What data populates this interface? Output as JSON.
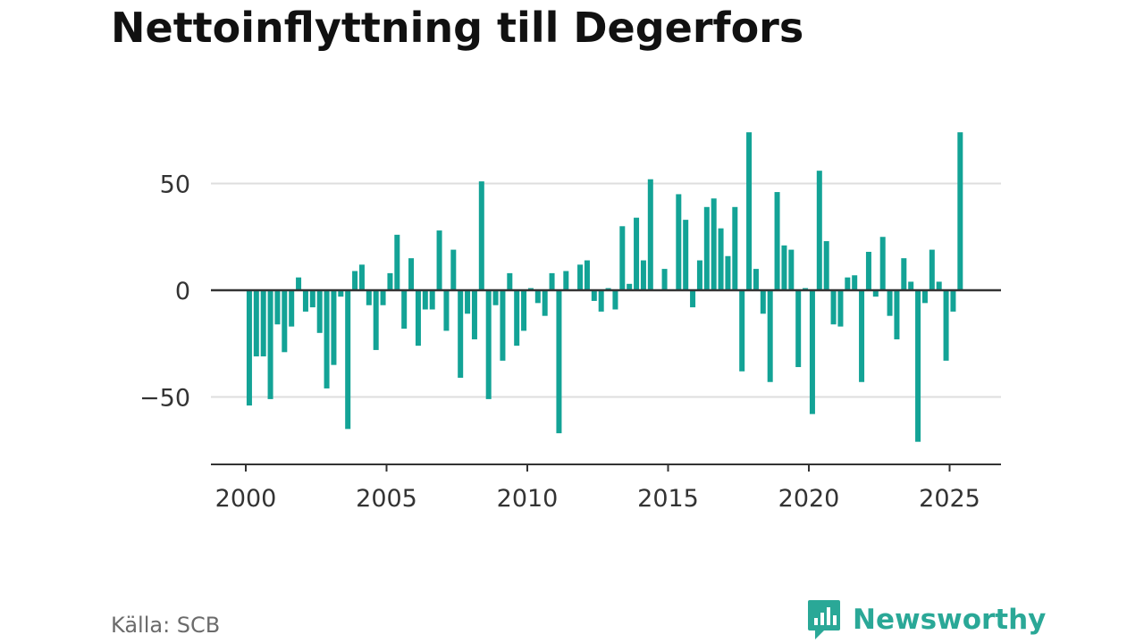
{
  "title": "Nettoinflyttning till Degerfors",
  "source": "Källa: SCB",
  "brand": "Newsworthy",
  "colors": {
    "bar": "#13a396",
    "grid": "#dedede",
    "zero_line": "#333333",
    "brand": "#2aa897"
  },
  "chart_data": {
    "type": "bar",
    "title": "Nettoinflyttning till Degerfors",
    "xlabel": "",
    "ylabel": "",
    "x_ticks": [
      "2000",
      "2005",
      "2010",
      "2015",
      "2020",
      "2025"
    ],
    "y_ticks": [
      "50",
      "0",
      "−50"
    ],
    "xlim": [
      1999.0,
      2026.8
    ],
    "ylim": [
      -82,
      74
    ],
    "grid": true,
    "series": [
      {
        "values": [
          {
            "x": "2000 Q1",
            "y": -54
          },
          {
            "x": "2000 Q2",
            "y": -31
          },
          {
            "x": "2000 Q3",
            "y": -31
          },
          {
            "x": "2000 Q4",
            "y": -51
          },
          {
            "x": "2001 Q1",
            "y": -16
          },
          {
            "x": "2001 Q2",
            "y": -29
          },
          {
            "x": "2001 Q3",
            "y": -17
          },
          {
            "x": "2001 Q4",
            "y": 6
          },
          {
            "x": "2002 Q1",
            "y": -10
          },
          {
            "x": "2002 Q2",
            "y": -8
          },
          {
            "x": "2002 Q3",
            "y": -20
          },
          {
            "x": "2002 Q4",
            "y": -46
          },
          {
            "x": "2003 Q1",
            "y": -35
          },
          {
            "x": "2003 Q2",
            "y": -3
          },
          {
            "x": "2003 Q3",
            "y": -65
          },
          {
            "x": "2003 Q4",
            "y": 9
          },
          {
            "x": "2004 Q1",
            "y": 12
          },
          {
            "x": "2004 Q2",
            "y": -7
          },
          {
            "x": "2004 Q3",
            "y": -28
          },
          {
            "x": "2004 Q4",
            "y": -7
          },
          {
            "x": "2005 Q1",
            "y": 8
          },
          {
            "x": "2005 Q2",
            "y": 26
          },
          {
            "x": "2005 Q3",
            "y": -18
          },
          {
            "x": "2005 Q4",
            "y": 15
          },
          {
            "x": "2006 Q1",
            "y": -26
          },
          {
            "x": "2006 Q2",
            "y": -9
          },
          {
            "x": "2006 Q3",
            "y": -9
          },
          {
            "x": "2006 Q4",
            "y": 28
          },
          {
            "x": "2007 Q1",
            "y": -19
          },
          {
            "x": "2007 Q2",
            "y": 19
          },
          {
            "x": "2007 Q3",
            "y": -41
          },
          {
            "x": "2007 Q4",
            "y": -11
          },
          {
            "x": "2008 Q1",
            "y": -23
          },
          {
            "x": "2008 Q2",
            "y": 51
          },
          {
            "x": "2008 Q3",
            "y": -51
          },
          {
            "x": "2008 Q4",
            "y": -7
          },
          {
            "x": "2009 Q1",
            "y": -33
          },
          {
            "x": "2009 Q2",
            "y": 8
          },
          {
            "x": "2009 Q3",
            "y": -26
          },
          {
            "x": "2009 Q4",
            "y": -19
          },
          {
            "x": "2010 Q1",
            "y": 1
          },
          {
            "x": "2010 Q2",
            "y": -6
          },
          {
            "x": "2010 Q3",
            "y": -12
          },
          {
            "x": "2010 Q4",
            "y": 8
          },
          {
            "x": "2011 Q1",
            "y": -67
          },
          {
            "x": "2011 Q2",
            "y": 9
          },
          {
            "x": "2011 Q3",
            "y": 0
          },
          {
            "x": "2011 Q4",
            "y": 12
          },
          {
            "x": "2012 Q1",
            "y": 14
          },
          {
            "x": "2012 Q2",
            "y": -5
          },
          {
            "x": "2012 Q3",
            "y": -10
          },
          {
            "x": "2012 Q4",
            "y": 1
          },
          {
            "x": "2013 Q1",
            "y": -9
          },
          {
            "x": "2013 Q2",
            "y": 30
          },
          {
            "x": "2013 Q3",
            "y": 3
          },
          {
            "x": "2013 Q4",
            "y": 34
          },
          {
            "x": "2014 Q1",
            "y": 14
          },
          {
            "x": "2014 Q2",
            "y": 52
          },
          {
            "x": "2014 Q3",
            "y": 0
          },
          {
            "x": "2014 Q4",
            "y": 10
          },
          {
            "x": "2015 Q1",
            "y": 0
          },
          {
            "x": "2015 Q2",
            "y": 45
          },
          {
            "x": "2015 Q3",
            "y": 33
          },
          {
            "x": "2015 Q4",
            "y": -8
          },
          {
            "x": "2016 Q1",
            "y": 14
          },
          {
            "x": "2016 Q2",
            "y": 39
          },
          {
            "x": "2016 Q3",
            "y": 43
          },
          {
            "x": "2016 Q4",
            "y": 29
          },
          {
            "x": "2017 Q1",
            "y": 16
          },
          {
            "x": "2017 Q2",
            "y": 39
          },
          {
            "x": "2017 Q3",
            "y": -38
          },
          {
            "x": "2017 Q4",
            "y": 74
          },
          {
            "x": "2018 Q1",
            "y": 10
          },
          {
            "x": "2018 Q2",
            "y": -11
          },
          {
            "x": "2018 Q3",
            "y": -43
          },
          {
            "x": "2018 Q4",
            "y": 46
          },
          {
            "x": "2019 Q1",
            "y": 21
          },
          {
            "x": "2019 Q2",
            "y": 19
          },
          {
            "x": "2019 Q3",
            "y": -36
          },
          {
            "x": "2019 Q4",
            "y": 1
          },
          {
            "x": "2020 Q1",
            "y": -58
          },
          {
            "x": "2020 Q2",
            "y": 56
          },
          {
            "x": "2020 Q3",
            "y": 23
          },
          {
            "x": "2020 Q4",
            "y": -16
          },
          {
            "x": "2021 Q1",
            "y": -17
          },
          {
            "x": "2021 Q2",
            "y": 6
          },
          {
            "x": "2021 Q3",
            "y": 7
          },
          {
            "x": "2021 Q4",
            "y": -43
          },
          {
            "x": "2022 Q1",
            "y": 18
          },
          {
            "x": "2022 Q2",
            "y": -3
          },
          {
            "x": "2022 Q3",
            "y": 25
          },
          {
            "x": "2022 Q4",
            "y": -12
          },
          {
            "x": "2023 Q1",
            "y": -23
          },
          {
            "x": "2023 Q2",
            "y": 15
          },
          {
            "x": "2023 Q3",
            "y": 4
          },
          {
            "x": "2023 Q4",
            "y": -71
          },
          {
            "x": "2024 Q1",
            "y": -6
          },
          {
            "x": "2024 Q2",
            "y": 19
          },
          {
            "x": "2024 Q3",
            "y": 4
          },
          {
            "x": "2024 Q4",
            "y": -33
          },
          {
            "x": "2025 Q1",
            "y": -10
          },
          {
            "x": "2025 Q2",
            "y": 74
          }
        ]
      }
    ]
  }
}
